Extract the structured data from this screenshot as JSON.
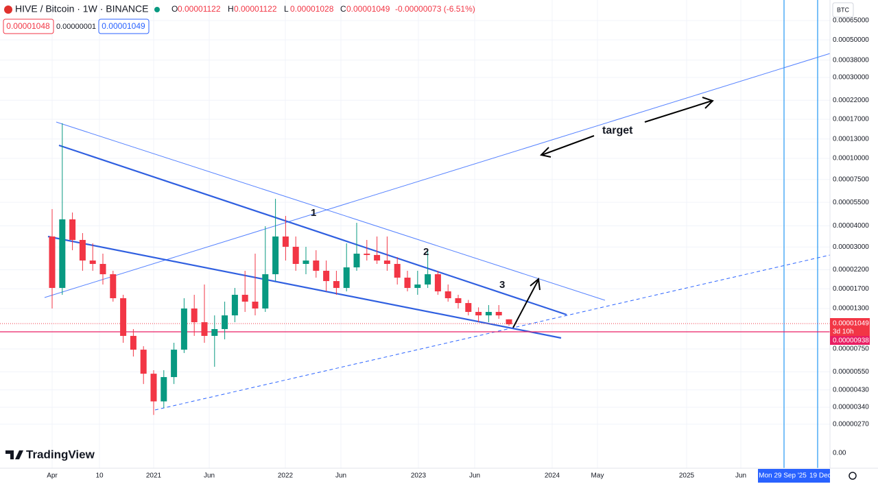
{
  "header": {
    "symbol": "HIVE / Bitcoin · 1W · BINANCE",
    "ohlc": [
      {
        "key": "O",
        "value": "0.00001122"
      },
      {
        "key": "H",
        "value": "0.00001122"
      },
      {
        "key": "L",
        "value": "0.00001028"
      },
      {
        "key": "C",
        "value": "0.00001049"
      }
    ],
    "change": "-0.00000073 (-6.51%)"
  },
  "order_boxes": {
    "sell": "0.00001048",
    "spread": "0.00000001",
    "buy": "0.00001049"
  },
  "currency": "BTC",
  "price_axis": {
    "ticks": [
      {
        "value": 0.00065,
        "label": "0.00065000"
      },
      {
        "value": 0.0005,
        "label": "0.00050000"
      },
      {
        "value": 0.00038,
        "label": "0.00038000"
      },
      {
        "value": 0.0003,
        "label": "0.00030000"
      },
      {
        "value": 0.00022,
        "label": "0.00022000"
      },
      {
        "value": 0.00017,
        "label": "0.00017000"
      },
      {
        "value": 0.00013,
        "label": "0.00013000"
      },
      {
        "value": 0.0001,
        "label": "0.00010000"
      },
      {
        "value": 7.5e-05,
        "label": "0.00007500"
      },
      {
        "value": 5.5e-05,
        "label": "0.00005500"
      },
      {
        "value": 4e-05,
        "label": "0.00004000"
      },
      {
        "value": 3e-05,
        "label": "0.00003000"
      },
      {
        "value": 2.2e-05,
        "label": "0.00002200"
      },
      {
        "value": 1.7e-05,
        "label": "0.00001700"
      },
      {
        "value": 1.3e-05,
        "label": "0.00001300"
      },
      {
        "value": 7.5e-06,
        "label": "0.00000750"
      },
      {
        "value": 5.5e-06,
        "label": "0.00000550"
      },
      {
        "value": 4.3e-06,
        "label": "0.00000430"
      },
      {
        "value": 3.4e-06,
        "label": "0.00000340"
      },
      {
        "value": 2.7e-06,
        "label": "0.00000270"
      }
    ],
    "bottom_label": "0.00",
    "log_scale": true
  },
  "price_labels": {
    "last": "0.00001049",
    "countdown": "3d 10h",
    "line": "0.00000938"
  },
  "time_axis": [
    "Apr",
    "10",
    "2021",
    "Jun",
    "2022",
    "Jun",
    "2023",
    "Jun",
    "2024",
    "May",
    "2025",
    "Jun"
  ],
  "crosshair": {
    "date1": "Mon 29 Sep '25",
    "date2": "19 Dec"
  },
  "annotations": [
    "1",
    "2",
    "3",
    "target"
  ],
  "brand": "TradingView",
  "candles": [
    [
      3.458e-05,
      5.019e-05,
      1.3e-05,
      1.719e-05
    ],
    [
      1.719e-05,
      0.0001611,
      1.566e-05,
      4.364e-05
    ],
    [
      4.364e-05,
      4.791e-05,
      2.87e-05,
      3.3e-05
    ],
    [
      3.3e-05,
      3.622e-05,
      2.17e-05,
      2.495e-05
    ],
    [
      2.495e-05,
      3.15e-05,
      2.17e-05,
      2.382e-05
    ],
    [
      2.382e-05,
      2.739e-05,
      1.801e-05,
      2.071e-05
    ],
    [
      2.071e-05,
      2.17e-05,
      1.427e-05,
      1.495e-05
    ],
    [
      1.495e-05,
      1.566e-05,
      8.16e-06,
      8.96e-06
    ],
    [
      8.96e-06,
      9.83e-06,
      6.77e-06,
      7.43e-06
    ],
    [
      7.43e-06,
      7.79e-06,
      4.66e-06,
      5.36e-06
    ],
    [
      5.36e-06,
      5.62e-06,
      3.06e-06,
      3.68e-06
    ],
    [
      3.68e-06,
      5.62e-06,
      3.36e-06,
      5.12e-06
    ],
    [
      5.12e-06,
      8.16e-06,
      4.66e-06,
      7.43e-06
    ],
    [
      7.43e-06,
      1.495e-05,
      7.1e-06,
      1.3e-05
    ],
    [
      1.3e-05,
      1.566e-05,
      8.96e-06,
      1.079e-05
    ],
    [
      1.079e-05,
      1.801e-05,
      8.16e-06,
      8.96e-06
    ],
    [
      8.96e-06,
      1.184e-05,
      5.89e-06,
      9.83e-06
    ],
    [
      9.83e-06,
      1.427e-05,
      8.55e-06,
      1.184e-05
    ],
    [
      1.184e-05,
      1.719e-05,
      1.079e-05,
      1.566e-05
    ],
    [
      1.566e-05,
      2.17e-05,
      1.241e-05,
      1.427e-05
    ],
    [
      1.427e-05,
      2.739e-05,
      1.184e-05,
      1.3e-05
    ],
    [
      1.3e-05,
      3.976e-05,
      1.241e-05,
      2.071e-05
    ],
    [
      2.071e-05,
      5.772e-05,
      1.887e-05,
      3.458e-05
    ],
    [
      3.458e-05,
      4.573e-05,
      2.495e-05,
      3.007e-05
    ],
    [
      3.007e-05,
      3.458e-05,
      2.17e-05,
      2.382e-05
    ],
    [
      2.382e-05,
      3.007e-05,
      2.071e-05,
      2.495e-05
    ],
    [
      2.495e-05,
      2.87e-05,
      1.977e-05,
      2.17e-05
    ],
    [
      2.17e-05,
      2.495e-05,
      1.641e-05,
      1.887e-05
    ],
    [
      1.887e-05,
      2.17e-05,
      1.566e-05,
      1.719e-05
    ],
    [
      1.719e-05,
      3.15e-05,
      1.641e-05,
      2.273e-05
    ],
    [
      2.273e-05,
      4.166e-05,
      2.17e-05,
      2.739e-05
    ],
    [
      2.739e-05,
      3.3e-05,
      2.495e-05,
      2.69e-05
    ],
    [
      2.69e-05,
      3.458e-05,
      2.382e-05,
      2.495e-05
    ],
    [
      2.495e-05,
      3.458e-05,
      2.17e-05,
      2.382e-05
    ],
    [
      2.382e-05,
      2.614e-05,
      1.801e-05,
      1.977e-05
    ],
    [
      1.977e-05,
      2.17e-05,
      1.641e-05,
      1.719e-05
    ],
    [
      1.719e-05,
      2.17e-05,
      1.566e-05,
      1.801e-05
    ],
    [
      1.801e-05,
      2.87e-05,
      1.719e-05,
      2.071e-05
    ],
    [
      2.071e-05,
      2.17e-05,
      1.566e-05,
      1.641e-05
    ],
    [
      1.641e-05,
      1.801e-05,
      1.427e-05,
      1.495e-05
    ],
    [
      1.495e-05,
      1.566e-05,
      1.3e-05,
      1.4e-05
    ],
    [
      1.4e-05,
      1.46e-05,
      1.184e-05,
      1.241e-05
    ],
    [
      1.241e-05,
      1.32e-05,
      1.079e-05,
      1.184e-05
    ],
    [
      1.184e-05,
      1.362e-05,
      1.079e-05,
      1.241e-05
    ],
    [
      1.241e-05,
      1.362e-05,
      1.13e-05,
      1.184e-05
    ],
    [
      1.122e-05,
      1.122e-05,
      1.028e-05,
      1.049e-05
    ]
  ]
}
